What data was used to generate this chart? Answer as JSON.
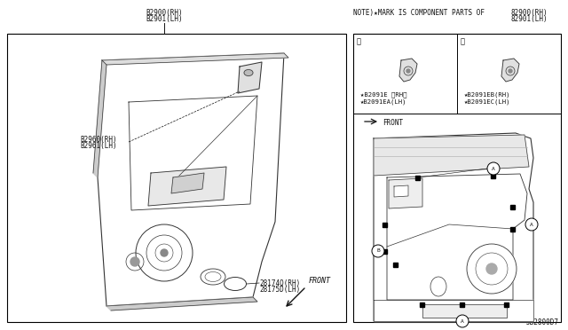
{
  "bg_color": "#ffffff",
  "title_note": "NOTE)★MARK IS COMPONENT PARTS OF",
  "title_note_parts": "82900(RH)\n82901(LH)",
  "main_label_top": "B2900(RH)\nB2901(LH)",
  "label_82960": "B2960(RH)\nB2961(LH)",
  "label_28174": "28174Q(RH)\n28175D(LH)",
  "label_A_part1": "★B2091E 〈RH〉",
  "label_A_part2": "★B2091EA(LH)",
  "label_B_part1": "★B2091EB(RH)",
  "label_B_part2": "★B2091EC(LH)",
  "front_label": "FRONT",
  "diagram_id": "JB2800D7",
  "lc": "#333333",
  "tc": "#111111"
}
